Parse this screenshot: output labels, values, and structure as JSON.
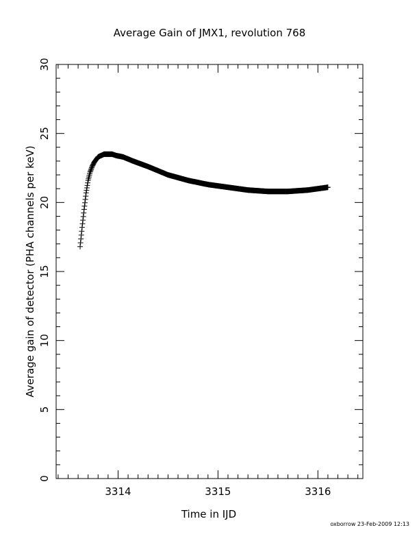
{
  "footer": "oxborrow 23-Feb-2009 12:13",
  "chart_data": {
    "type": "scatter",
    "title": "Average Gain of JMX1, revolution 768",
    "xlabel": "Time in IJD",
    "ylabel": "Average gain of detector (PHA channels per keV)",
    "xlim": [
      3313.38,
      3316.45
    ],
    "ylim": [
      0,
      30
    ],
    "xticks": [
      3314,
      3315,
      3316
    ],
    "xtick_labels": [
      "3314",
      "3315",
      "3316"
    ],
    "yticks": [
      0,
      5,
      10,
      15,
      20,
      25,
      30
    ],
    "ytick_labels": [
      "0",
      "5",
      "10",
      "15",
      "20",
      "25",
      "30"
    ],
    "grid": false,
    "marker": "+",
    "color": "#000000",
    "series": [
      {
        "x": [
          3313.62,
          3313.64,
          3313.66,
          3313.68,
          3313.7,
          3313.72,
          3313.74,
          3313.76,
          3313.78,
          3313.8,
          3313.83,
          3313.86,
          3313.9,
          3313.94,
          3313.98,
          3314.05,
          3314.15,
          3314.3,
          3314.5,
          3314.7,
          3314.9,
          3315.1,
          3315.3,
          3315.5,
          3315.6,
          3315.7,
          3315.9,
          3316.1
        ],
        "y": [
          16.8,
          18.2,
          19.5,
          20.7,
          21.6,
          22.2,
          22.6,
          22.9,
          23.1,
          23.3,
          23.4,
          23.5,
          23.5,
          23.5,
          23.4,
          23.3,
          23.0,
          22.6,
          22.0,
          21.6,
          21.3,
          21.1,
          20.9,
          20.8,
          20.8,
          20.8,
          20.9,
          21.1
        ]
      }
    ]
  }
}
